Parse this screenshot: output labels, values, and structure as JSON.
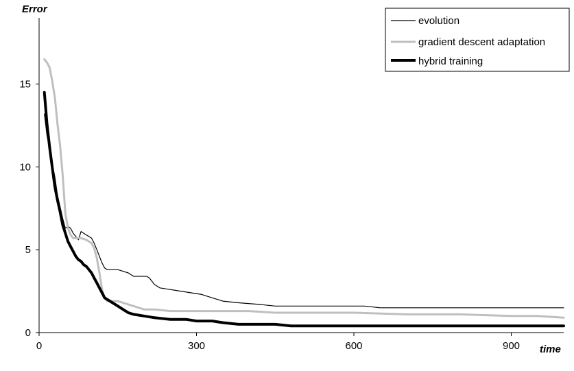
{
  "chart_data": {
    "type": "line",
    "ylabel": "Error",
    "xlabel": "time",
    "xlim": [
      0,
      1000
    ],
    "ylim": [
      0,
      19
    ],
    "x_ticks": [
      0,
      300,
      600,
      900
    ],
    "y_ticks": [
      0,
      5,
      10,
      15
    ],
    "x_tick_labels": [
      "0",
      "300",
      "600",
      "900"
    ],
    "y_tick_labels": [
      "0",
      "5",
      "10",
      "15"
    ],
    "grid": false,
    "legend_position": "top-right",
    "series": [
      {
        "name": "evolution",
        "color": "#000000",
        "points": [
          [
            10,
            13.2
          ],
          [
            15,
            11.9
          ],
          [
            20,
            11.1
          ],
          [
            25,
            10.2
          ],
          [
            30,
            9.4
          ],
          [
            35,
            8.3
          ],
          [
            40,
            7.6
          ],
          [
            45,
            6.9
          ],
          [
            50,
            6.3
          ],
          [
            55,
            6.4
          ],
          [
            60,
            6.3
          ],
          [
            65,
            6.0
          ],
          [
            70,
            5.8
          ],
          [
            75,
            5.6
          ],
          [
            80,
            6.1
          ],
          [
            85,
            6.0
          ],
          [
            90,
            5.9
          ],
          [
            95,
            5.8
          ],
          [
            100,
            5.7
          ],
          [
            105,
            5.4
          ],
          [
            110,
            5.0
          ],
          [
            115,
            4.6
          ],
          [
            120,
            4.2
          ],
          [
            125,
            3.9
          ],
          [
            130,
            3.8
          ],
          [
            140,
            3.8
          ],
          [
            150,
            3.8
          ],
          [
            160,
            3.7
          ],
          [
            170,
            3.6
          ],
          [
            180,
            3.4
          ],
          [
            190,
            3.4
          ],
          [
            200,
            3.4
          ],
          [
            205,
            3.4
          ],
          [
            210,
            3.3
          ],
          [
            215,
            3.1
          ],
          [
            220,
            2.9
          ],
          [
            230,
            2.7
          ],
          [
            250,
            2.6
          ],
          [
            270,
            2.5
          ],
          [
            290,
            2.4
          ],
          [
            310,
            2.3
          ],
          [
            330,
            2.1
          ],
          [
            350,
            1.9
          ],
          [
            380,
            1.8
          ],
          [
            420,
            1.7
          ],
          [
            450,
            1.6
          ],
          [
            470,
            1.6
          ],
          [
            500,
            1.6
          ],
          [
            550,
            1.6
          ],
          [
            600,
            1.6
          ],
          [
            620,
            1.6
          ],
          [
            650,
            1.5
          ],
          [
            700,
            1.5
          ],
          [
            800,
            1.5
          ],
          [
            870,
            1.5
          ],
          [
            900,
            1.5
          ],
          [
            950,
            1.5
          ],
          [
            1000,
            1.5
          ]
        ]
      },
      {
        "name": "gradient descent adaptation",
        "color": "#bfbfbf",
        "points": [
          [
            10,
            16.5
          ],
          [
            15,
            16.3
          ],
          [
            20,
            16.0
          ],
          [
            25,
            15.2
          ],
          [
            30,
            14.2
          ],
          [
            35,
            12.6
          ],
          [
            40,
            11.3
          ],
          [
            45,
            9.5
          ],
          [
            50,
            7.2
          ],
          [
            55,
            6.3
          ],
          [
            60,
            5.9
          ],
          [
            65,
            5.7
          ],
          [
            70,
            5.7
          ],
          [
            80,
            5.7
          ],
          [
            90,
            5.6
          ],
          [
            95,
            5.5
          ],
          [
            100,
            5.4
          ],
          [
            105,
            5.1
          ],
          [
            110,
            4.5
          ],
          [
            115,
            3.6
          ],
          [
            120,
            2.6
          ],
          [
            125,
            2.1
          ],
          [
            130,
            1.9
          ],
          [
            140,
            1.9
          ],
          [
            150,
            1.9
          ],
          [
            160,
            1.8
          ],
          [
            170,
            1.7
          ],
          [
            180,
            1.6
          ],
          [
            200,
            1.4
          ],
          [
            220,
            1.4
          ],
          [
            250,
            1.3
          ],
          [
            300,
            1.3
          ],
          [
            400,
            1.3
          ],
          [
            450,
            1.2
          ],
          [
            500,
            1.2
          ],
          [
            600,
            1.2
          ],
          [
            700,
            1.1
          ],
          [
            800,
            1.1
          ],
          [
            900,
            1.0
          ],
          [
            950,
            1.0
          ],
          [
            1000,
            0.9
          ]
        ]
      },
      {
        "name": "hybrid training",
        "color": "#000000",
        "points": [
          [
            10,
            14.5
          ],
          [
            15,
            12.6
          ],
          [
            20,
            11.2
          ],
          [
            25,
            10.0
          ],
          [
            30,
            8.8
          ],
          [
            35,
            8.0
          ],
          [
            40,
            7.3
          ],
          [
            45,
            6.5
          ],
          [
            50,
            6.0
          ],
          [
            55,
            5.5
          ],
          [
            60,
            5.2
          ],
          [
            65,
            4.9
          ],
          [
            70,
            4.6
          ],
          [
            75,
            4.4
          ],
          [
            80,
            4.3
          ],
          [
            85,
            4.1
          ],
          [
            90,
            4.0
          ],
          [
            95,
            3.8
          ],
          [
            100,
            3.6
          ],
          [
            105,
            3.3
          ],
          [
            110,
            3.0
          ],
          [
            115,
            2.7
          ],
          [
            120,
            2.4
          ],
          [
            125,
            2.1
          ],
          [
            130,
            2.0
          ],
          [
            140,
            1.8
          ],
          [
            150,
            1.6
          ],
          [
            160,
            1.4
          ],
          [
            170,
            1.2
          ],
          [
            180,
            1.1
          ],
          [
            200,
            1.0
          ],
          [
            220,
            0.9
          ],
          [
            250,
            0.8
          ],
          [
            280,
            0.8
          ],
          [
            300,
            0.7
          ],
          [
            330,
            0.7
          ],
          [
            350,
            0.6
          ],
          [
            380,
            0.5
          ],
          [
            400,
            0.5
          ],
          [
            450,
            0.5
          ],
          [
            480,
            0.4
          ],
          [
            500,
            0.4
          ],
          [
            600,
            0.4
          ],
          [
            700,
            0.4
          ],
          [
            800,
            0.4
          ],
          [
            900,
            0.4
          ],
          [
            1000,
            0.4
          ]
        ]
      }
    ]
  }
}
